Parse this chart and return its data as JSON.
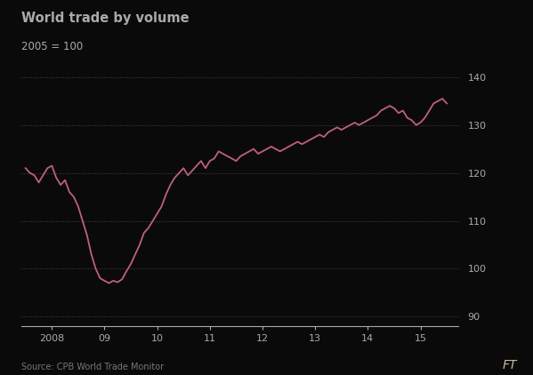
{
  "title": "World trade by volume",
  "subtitle": "2005 = 100",
  "source": "Source: CPB World Trade Monitor",
  "line_color": "#c0607a",
  "bg_color": "#0a0a0a",
  "grid_color": "#444444",
  "text_color": "#aaaaaa",
  "ylim": [
    88,
    142
  ],
  "yticks": [
    90,
    100,
    110,
    120,
    130,
    140
  ],
  "xtick_positions": [
    2008,
    2009,
    2010,
    2011,
    2012,
    2013,
    2014,
    2015
  ],
  "xtick_labels": [
    "2008",
    "09",
    "10",
    "11",
    "12",
    "13",
    "14",
    "15"
  ],
  "xlim": [
    2007.42,
    2015.72
  ],
  "ft_watermark": "FT",
  "data": {
    "x": [
      2007.5,
      2007.583,
      2007.667,
      2007.75,
      2007.833,
      2007.917,
      2008.0,
      2008.083,
      2008.167,
      2008.25,
      2008.333,
      2008.417,
      2008.5,
      2008.583,
      2008.667,
      2008.75,
      2008.833,
      2008.917,
      2009.0,
      2009.083,
      2009.167,
      2009.25,
      2009.333,
      2009.417,
      2009.5,
      2009.583,
      2009.667,
      2009.75,
      2009.833,
      2009.917,
      2010.0,
      2010.083,
      2010.167,
      2010.25,
      2010.333,
      2010.417,
      2010.5,
      2010.583,
      2010.667,
      2010.75,
      2010.833,
      2010.917,
      2011.0,
      2011.083,
      2011.167,
      2011.25,
      2011.333,
      2011.417,
      2011.5,
      2011.583,
      2011.667,
      2011.75,
      2011.833,
      2011.917,
      2012.0,
      2012.083,
      2012.167,
      2012.25,
      2012.333,
      2012.417,
      2012.5,
      2012.583,
      2012.667,
      2012.75,
      2012.833,
      2012.917,
      2013.0,
      2013.083,
      2013.167,
      2013.25,
      2013.333,
      2013.417,
      2013.5,
      2013.583,
      2013.667,
      2013.75,
      2013.833,
      2013.917,
      2014.0,
      2014.083,
      2014.167,
      2014.25,
      2014.333,
      2014.417,
      2014.5,
      2014.583,
      2014.667,
      2014.75,
      2014.833,
      2014.917,
      2015.0,
      2015.083,
      2015.167,
      2015.25,
      2015.333,
      2015.417,
      2015.5
    ],
    "y": [
      121.0,
      120.0,
      119.5,
      118.0,
      119.5,
      121.0,
      121.5,
      119.0,
      117.5,
      118.5,
      116.0,
      115.0,
      113.0,
      110.0,
      107.0,
      103.0,
      100.0,
      98.0,
      97.5,
      97.0,
      97.5,
      97.2,
      97.8,
      99.5,
      101.0,
      103.0,
      105.0,
      107.5,
      108.5,
      110.0,
      111.5,
      113.0,
      115.5,
      117.5,
      119.0,
      120.0,
      121.0,
      119.5,
      120.5,
      121.5,
      122.5,
      121.0,
      122.5,
      123.0,
      124.5,
      124.0,
      123.5,
      123.0,
      122.5,
      123.5,
      124.0,
      124.5,
      125.0,
      124.0,
      124.5,
      125.0,
      125.5,
      125.0,
      124.5,
      125.0,
      125.5,
      126.0,
      126.5,
      126.0,
      126.5,
      127.0,
      127.5,
      128.0,
      127.5,
      128.5,
      129.0,
      129.5,
      129.0,
      129.5,
      130.0,
      130.5,
      130.0,
      130.5,
      131.0,
      131.5,
      132.0,
      133.0,
      133.5,
      134.0,
      133.5,
      132.5,
      133.0,
      131.5,
      131.0,
      130.0,
      130.5,
      131.5,
      133.0,
      134.5,
      135.0,
      135.5,
      134.5
    ]
  }
}
